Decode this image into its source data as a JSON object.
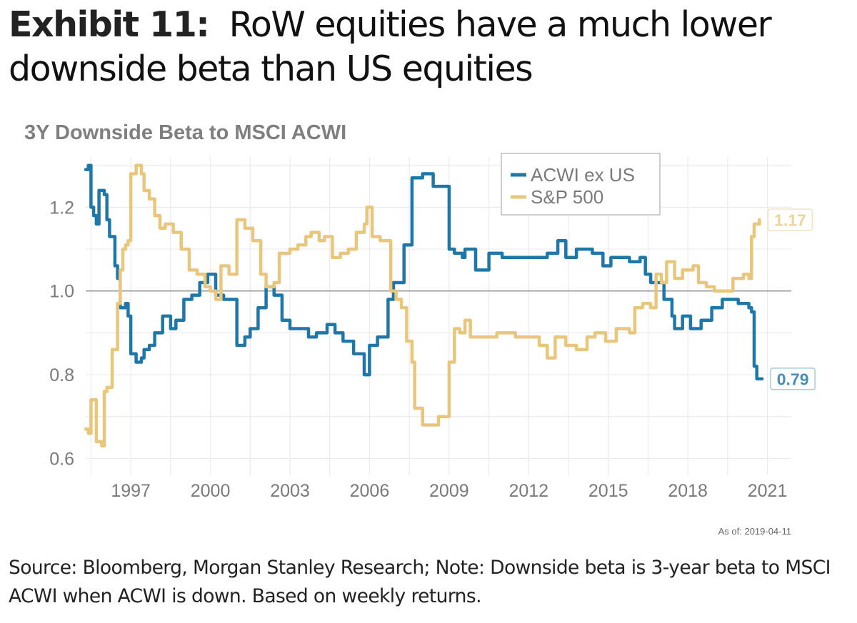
{
  "header": {
    "exhibit_label": "Exhibit 11:",
    "title_text": "RoW equities have a much lower downside beta than US equities"
  },
  "footer": {
    "as_of": "As of:  2019-04-11",
    "note": "Source: Bloomberg, Morgan Stanley Research; Note: Downside beta is 3-year beta to MSCI ACWI when ACWI is down. Based on weekly returns."
  },
  "chart_data": {
    "type": "line",
    "title": "3Y Downside Beta to MSCI ACWI",
    "xlabel": "",
    "ylabel": "",
    "xlim": [
      1995.3,
      2021.9
    ],
    "ylim": [
      0.57,
      1.32
    ],
    "x_ticks": [
      1997,
      2000,
      2003,
      2006,
      2009,
      2012,
      2015,
      2018,
      2021
    ],
    "x_tick_labels": [
      "1997",
      "2000",
      "2003",
      "2006",
      "2009",
      "2012",
      "2015",
      "2018",
      "2021"
    ],
    "y_ticks": [
      0.6,
      0.8,
      1.0,
      1.2
    ],
    "y_tick_labels": [
      "0.6",
      "0.8",
      "1.0",
      "1.2"
    ],
    "reference_line": 1.0,
    "grid": true,
    "legend_position": "top-center",
    "series": [
      {
        "name": "ACWI ex US",
        "color": "#1f77a8",
        "end_label": "0.79",
        "end_value": 0.79,
        "points": [
          [
            1995.3,
            1.29
          ],
          [
            1995.4,
            1.3
          ],
          [
            1995.5,
            1.2
          ],
          [
            1995.6,
            1.18
          ],
          [
            1995.7,
            1.16
          ],
          [
            1995.8,
            1.24
          ],
          [
            1996.0,
            1.23
          ],
          [
            1996.1,
            1.17
          ],
          [
            1996.2,
            1.13
          ],
          [
            1996.4,
            1.06
          ],
          [
            1996.5,
            1.03
          ],
          [
            1996.6,
            0.96
          ],
          [
            1996.8,
            0.97
          ],
          [
            1996.9,
            0.94
          ],
          [
            1997.0,
            0.85
          ],
          [
            1997.2,
            0.83
          ],
          [
            1997.4,
            0.84
          ],
          [
            1997.5,
            0.86
          ],
          [
            1997.7,
            0.87
          ],
          [
            1997.9,
            0.9
          ],
          [
            1998.2,
            0.94
          ],
          [
            1998.5,
            0.91
          ],
          [
            1998.7,
            0.93
          ],
          [
            1999.0,
            0.98
          ],
          [
            1999.3,
            0.99
          ],
          [
            1999.6,
            1.02
          ],
          [
            1999.9,
            1.04
          ],
          [
            2000.2,
            0.99
          ],
          [
            2000.5,
            0.98
          ],
          [
            2000.8,
            0.98
          ],
          [
            2001.0,
            0.87
          ],
          [
            2001.3,
            0.89
          ],
          [
            2001.5,
            0.91
          ],
          [
            2001.8,
            0.96
          ],
          [
            2002.1,
            1.01
          ],
          [
            2002.4,
            0.99
          ],
          [
            2002.7,
            0.93
          ],
          [
            2003.0,
            0.91
          ],
          [
            2003.4,
            0.91
          ],
          [
            2003.7,
            0.89
          ],
          [
            2004.0,
            0.9
          ],
          [
            2004.4,
            0.92
          ],
          [
            2004.7,
            0.9
          ],
          [
            2005.0,
            0.88
          ],
          [
            2005.4,
            0.85
          ],
          [
            2005.8,
            0.8
          ],
          [
            2006.0,
            0.87
          ],
          [
            2006.3,
            0.89
          ],
          [
            2006.6,
            0.89
          ],
          [
            2006.7,
            0.98
          ],
          [
            2006.9,
            1.02
          ],
          [
            2007.3,
            1.11
          ],
          [
            2007.6,
            1.27
          ],
          [
            2008.0,
            1.28
          ],
          [
            2008.4,
            1.25
          ],
          [
            2008.6,
            1.25
          ],
          [
            2009.0,
            1.1
          ],
          [
            2009.2,
            1.09
          ],
          [
            2009.5,
            1.08
          ],
          [
            2009.6,
            1.1
          ],
          [
            2010.0,
            1.05
          ],
          [
            2010.5,
            1.09
          ],
          [
            2011.0,
            1.08
          ],
          [
            2011.9,
            1.08
          ],
          [
            2012.7,
            1.09
          ],
          [
            2013.1,
            1.12
          ],
          [
            2013.4,
            1.08
          ],
          [
            2013.8,
            1.1
          ],
          [
            2014.4,
            1.09
          ],
          [
            2014.8,
            1.06
          ],
          [
            2015.1,
            1.08
          ],
          [
            2015.8,
            1.07
          ],
          [
            2016.2,
            1.08
          ],
          [
            2016.4,
            1.04
          ],
          [
            2016.6,
            1.02
          ],
          [
            2016.9,
            1.02
          ],
          [
            2017.1,
            0.98
          ],
          [
            2017.4,
            0.94
          ],
          [
            2017.5,
            0.91
          ],
          [
            2017.8,
            0.94
          ],
          [
            2018.1,
            0.91
          ],
          [
            2018.5,
            0.93
          ],
          [
            2018.9,
            0.96
          ],
          [
            2019.3,
            0.98
          ],
          [
            2019.6,
            0.98
          ],
          [
            2019.9,
            0.97
          ],
          [
            2020.3,
            0.96
          ],
          [
            2020.4,
            0.95
          ],
          [
            2020.5,
            0.82
          ],
          [
            2020.6,
            0.79
          ],
          [
            2020.8,
            0.79
          ]
        ]
      },
      {
        "name": "S&P 500",
        "color": "#e8c77d",
        "end_label": "1.17",
        "end_value": 1.17,
        "points": [
          [
            1995.3,
            0.67
          ],
          [
            1995.4,
            0.66
          ],
          [
            1995.5,
            0.74
          ],
          [
            1995.6,
            0.74
          ],
          [
            1995.7,
            0.64
          ],
          [
            1995.8,
            0.64
          ],
          [
            1995.9,
            0.63
          ],
          [
            1996.0,
            0.76
          ],
          [
            1996.1,
            0.77
          ],
          [
            1996.3,
            0.86
          ],
          [
            1996.5,
            0.97
          ],
          [
            1996.6,
            1.05
          ],
          [
            1996.7,
            1.1
          ],
          [
            1996.8,
            1.11
          ],
          [
            1996.9,
            1.12
          ],
          [
            1997.0,
            1.28
          ],
          [
            1997.2,
            1.3
          ],
          [
            1997.4,
            1.28
          ],
          [
            1997.5,
            1.24
          ],
          [
            1997.7,
            1.22
          ],
          [
            1997.9,
            1.18
          ],
          [
            1998.1,
            1.15
          ],
          [
            1998.3,
            1.16
          ],
          [
            1998.6,
            1.14
          ],
          [
            1998.9,
            1.1
          ],
          [
            1999.2,
            1.05
          ],
          [
            1999.5,
            1.04
          ],
          [
            1999.8,
            1.01
          ],
          [
            2000.0,
            1.0
          ],
          [
            2000.2,
            0.98
          ],
          [
            2000.4,
            1.06
          ],
          [
            2000.7,
            1.04
          ],
          [
            2001.0,
            1.17
          ],
          [
            2001.3,
            1.15
          ],
          [
            2001.6,
            1.12
          ],
          [
            2001.9,
            1.04
          ],
          [
            2002.1,
            1.01
          ],
          [
            2002.4,
            1.02
          ],
          [
            2002.6,
            1.09
          ],
          [
            2003.0,
            1.1
          ],
          [
            2003.3,
            1.11
          ],
          [
            2003.6,
            1.13
          ],
          [
            2003.8,
            1.14
          ],
          [
            2004.1,
            1.12
          ],
          [
            2004.3,
            1.13
          ],
          [
            2004.6,
            1.08
          ],
          [
            2004.9,
            1.09
          ],
          [
            2005.2,
            1.1
          ],
          [
            2005.5,
            1.14
          ],
          [
            2005.8,
            1.16
          ],
          [
            2005.9,
            1.2
          ],
          [
            2006.1,
            1.13
          ],
          [
            2006.4,
            1.12
          ],
          [
            2006.6,
            1.12
          ],
          [
            2006.8,
            1.0
          ],
          [
            2007.0,
            0.98
          ],
          [
            2007.2,
            0.96
          ],
          [
            2007.4,
            0.88
          ],
          [
            2007.6,
            0.83
          ],
          [
            2007.7,
            0.72
          ],
          [
            2008.0,
            0.68
          ],
          [
            2008.4,
            0.68
          ],
          [
            2008.6,
            0.7
          ],
          [
            2008.8,
            0.7
          ],
          [
            2009.0,
            0.83
          ],
          [
            2009.2,
            0.91
          ],
          [
            2009.4,
            0.9
          ],
          [
            2009.6,
            0.93
          ],
          [
            2009.8,
            0.89
          ],
          [
            2010.2,
            0.89
          ],
          [
            2010.8,
            0.9
          ],
          [
            2011.5,
            0.89
          ],
          [
            2012.0,
            0.89
          ],
          [
            2012.4,
            0.87
          ],
          [
            2012.7,
            0.84
          ],
          [
            2013.0,
            0.89
          ],
          [
            2013.4,
            0.87
          ],
          [
            2013.8,
            0.86
          ],
          [
            2014.2,
            0.89
          ],
          [
            2014.5,
            0.9
          ],
          [
            2014.9,
            0.88
          ],
          [
            2015.3,
            0.91
          ],
          [
            2015.8,
            0.9
          ],
          [
            2016.0,
            0.96
          ],
          [
            2016.3,
            0.97
          ],
          [
            2016.6,
            0.96
          ],
          [
            2016.8,
            1.04
          ],
          [
            2017.0,
            1.02
          ],
          [
            2017.2,
            1.07
          ],
          [
            2017.5,
            1.03
          ],
          [
            2017.8,
            1.05
          ],
          [
            2018.2,
            1.06
          ],
          [
            2018.4,
            1.02
          ],
          [
            2018.7,
            1.01
          ],
          [
            2019.0,
            1.0
          ],
          [
            2019.4,
            1.0
          ],
          [
            2019.7,
            1.03
          ],
          [
            2020.1,
            1.04
          ],
          [
            2020.3,
            1.03
          ],
          [
            2020.4,
            1.13
          ],
          [
            2020.5,
            1.16
          ],
          [
            2020.7,
            1.17
          ]
        ]
      }
    ]
  }
}
